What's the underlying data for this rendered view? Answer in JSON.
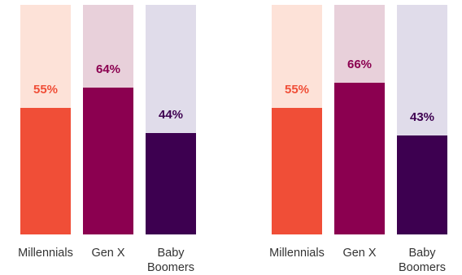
{
  "chart_data": [
    {
      "type": "bar",
      "categories": [
        "Millennials",
        "Gen X",
        "Baby Boomers"
      ],
      "category_lines": [
        [
          "Millennials"
        ],
        [
          "Gen X"
        ],
        [
          "Baby",
          "Boomers"
        ]
      ],
      "values": [
        55,
        64,
        44
      ],
      "value_labels": [
        "55%",
        "64%",
        "44%"
      ],
      "ylim": [
        0,
        100
      ],
      "title": "",
      "xlabel": "",
      "ylabel": ""
    },
    {
      "type": "bar",
      "categories": [
        "Millennials",
        "Gen X",
        "Baby Boomers"
      ],
      "category_lines": [
        [
          "Millennials"
        ],
        [
          "Gen X"
        ],
        [
          "Baby",
          "Boomers"
        ]
      ],
      "values": [
        55,
        66,
        43
      ],
      "value_labels": [
        "55%",
        "66%",
        "43%"
      ],
      "ylim": [
        0,
        100
      ],
      "title": "",
      "xlabel": "",
      "ylabel": ""
    }
  ],
  "colors": {
    "millennials_fill": "#f04e37",
    "millennials_track": "#fde2d8",
    "millennials_label": "#f04e37",
    "genx_fill": "#8b0050",
    "genx_track": "#e8d0da",
    "genx_label": "#8b0050",
    "boomers_fill": "#3d0050",
    "boomers_track": "#e0dcea",
    "boomers_label": "#3d0050"
  }
}
